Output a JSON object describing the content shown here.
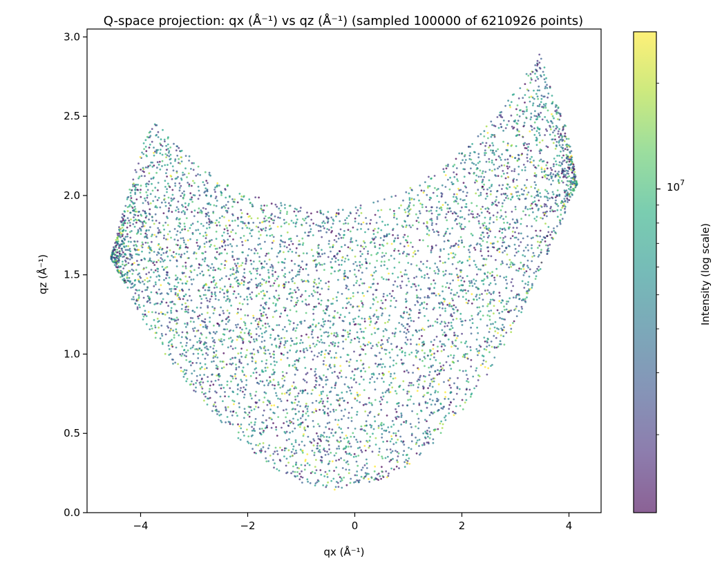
{
  "chart_data": {
    "type": "scatter",
    "title": "Q-space projection: qx (Å⁻¹) vs qz (Å⁻¹) (sampled 100000 of 6210926 points)",
    "xlabel": "qx (Å⁻¹)",
    "ylabel": "qz (Å⁻¹)",
    "xlim": [
      -5.0,
      4.6
    ],
    "ylim": [
      0.0,
      3.05
    ],
    "xticks": [
      -4,
      -2,
      0,
      2,
      4
    ],
    "xtick_labels": [
      "−4",
      "−2",
      "0",
      "2",
      "4"
    ],
    "yticks": [
      0.0,
      0.5,
      1.0,
      1.5,
      2.0,
      2.5,
      3.0
    ],
    "ytick_labels": [
      "0.0",
      "0.5",
      "1.0",
      "1.5",
      "2.0",
      "2.5",
      "3.0"
    ],
    "grid": false,
    "colormap": "viridis",
    "point_alpha": 0.6,
    "sampled_points": 100000,
    "total_points": 6210926,
    "region": {
      "lower_boundary": {
        "qx": [
          -4.55,
          -4.0,
          -3.5,
          -3.0,
          -2.5,
          -2.0,
          -1.5,
          -1.0,
          -0.5,
          -0.35,
          0.0,
          0.5,
          1.0,
          1.5,
          2.0,
          2.5,
          3.0,
          3.5,
          4.0,
          4.15
        ],
        "qz": [
          1.6,
          1.24,
          0.98,
          0.76,
          0.57,
          0.41,
          0.28,
          0.19,
          0.14,
          0.135,
          0.15,
          0.2,
          0.3,
          0.45,
          0.64,
          0.88,
          1.18,
          1.54,
          1.95,
          2.07
        ]
      },
      "upper_boundary": {
        "qx": [
          -4.55,
          -4.2,
          -3.9,
          -3.7,
          -3.5,
          -3.0,
          -2.5,
          -2.0,
          -1.5,
          -1.0,
          -0.5,
          0.0,
          0.5,
          1.0,
          1.5,
          2.0,
          2.5,
          3.0,
          3.3,
          3.45,
          3.7,
          4.0,
          4.15
        ],
        "qz": [
          1.62,
          2.05,
          2.38,
          2.47,
          2.38,
          2.22,
          2.09,
          2.01,
          1.96,
          1.93,
          1.92,
          1.93,
          1.98,
          2.05,
          2.14,
          2.28,
          2.45,
          2.66,
          2.82,
          2.9,
          2.66,
          2.38,
          2.07
        ]
      }
    },
    "colorbar": {
      "label": "Intensity (log scale)",
      "scale": "log",
      "major_tick_label": "10",
      "major_tick_exponent": "7",
      "major_tick_value": 10000000,
      "range": [
        1200000,
        28000000
      ]
    }
  }
}
